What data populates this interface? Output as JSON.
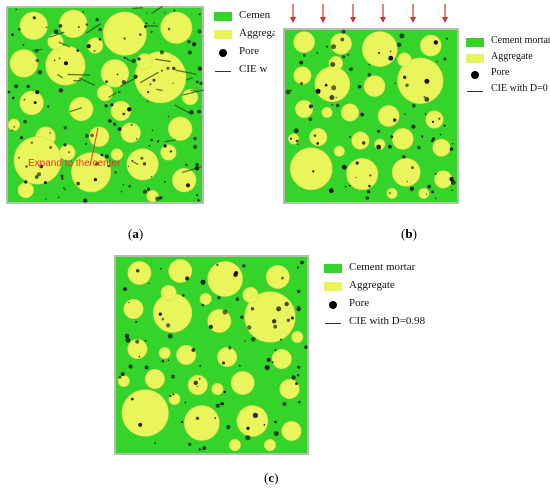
{
  "legend_a": {
    "cement": "Cemen",
    "aggregate": "Aggrega",
    "pore": "Pore",
    "cie": "CIE w"
  },
  "legend_b": {
    "cement": "Cement mortar",
    "aggregate": "Aggregate",
    "pore": "Pore",
    "cie": "CIE with D=0"
  },
  "legend_c": {
    "cement": "Cement mortar",
    "aggregate": "Aggregate",
    "pore": "Pore",
    "cie": "CIE with D=0.98"
  },
  "annotation_a": "Expand to the center",
  "caption_a": {
    "pre": "(",
    "letter": "a",
    "post": ")"
  },
  "caption_b": {
    "pre": "(",
    "letter": "b",
    "post": ")"
  },
  "caption_c": {
    "pre": "(",
    "letter": "c",
    "post": ")"
  },
  "colors": {
    "cement": "#35d42a",
    "aggregate": "#e9f55a",
    "pore": "#0b0b0b",
    "frame": "#b5bdb0",
    "arrow": "#c8342b",
    "annotation": "#e0372c"
  }
}
